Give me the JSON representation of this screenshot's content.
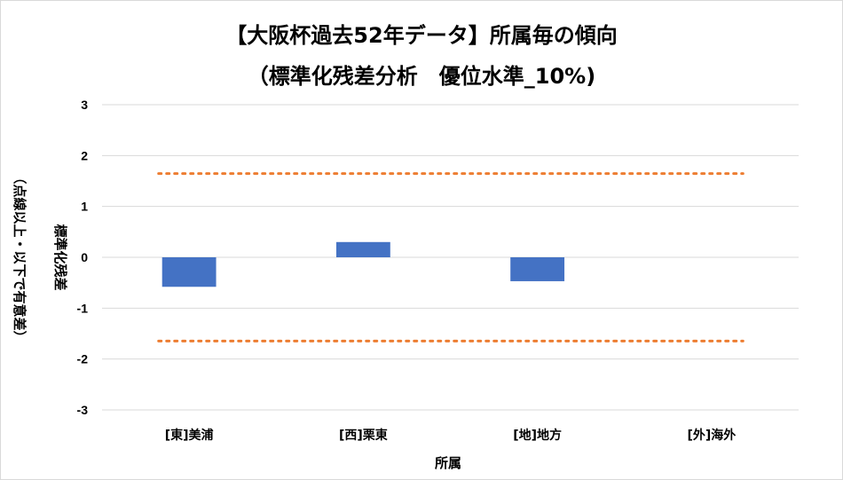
{
  "chart_data": {
    "type": "bar",
    "title": "【大阪杯過去52年データ】所属毎の傾向",
    "subtitle": "（標準化残差分析　優位水準_10%)",
    "xlabel": "所属",
    "ylabel": "標準化残差",
    "ylabel_note": "（点線以上・以下で有意差）",
    "categories": [
      "[東]美浦",
      "[西]栗東",
      "[地]地方",
      "[外]海外"
    ],
    "series": [
      {
        "values": [
          -0.58,
          0.3,
          -0.47,
          0
        ],
        "color": "#4472C4"
      }
    ],
    "thresholds": [
      1.645,
      -1.645
    ],
    "threshold_color": "#ED7D31",
    "ylim": [
      -3,
      3
    ],
    "yticks": [
      3,
      2,
      1,
      0,
      -1,
      -2,
      -3
    ],
    "grid": true,
    "legend": "none"
  }
}
